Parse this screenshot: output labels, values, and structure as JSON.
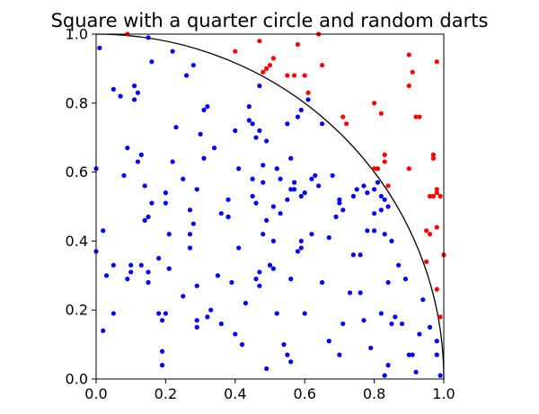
{
  "chart_data": {
    "type": "scatter",
    "title": "Square with a quarter circle and random darts",
    "xlabel": "",
    "ylabel": "",
    "xlim": [
      0.0,
      1.0
    ],
    "ylim": [
      0.0,
      1.0
    ],
    "x_ticks": [
      "0.0",
      "0.2",
      "0.4",
      "0.6",
      "0.8",
      "1.0"
    ],
    "y_ticks": [
      "0.0",
      "0.2",
      "0.4",
      "0.6",
      "0.8",
      "1.0"
    ],
    "grid": false,
    "legend": "none",
    "quarter_circle": {
      "center": [
        0,
        0
      ],
      "radius": 1.0,
      "color": "#000000"
    },
    "series": [
      {
        "color": "#0000ff",
        "points": [
          [
            0.01,
            0.96
          ],
          [
            0.0,
            0.61
          ],
          [
            0.0,
            0.37
          ],
          [
            0.02,
            0.43
          ],
          [
            0.02,
            0.14
          ],
          [
            0.03,
            0.3
          ],
          [
            0.05,
            0.33
          ],
          [
            0.05,
            0.19
          ],
          [
            0.05,
            0.84
          ],
          [
            0.07,
            0.82
          ],
          [
            0.08,
            0.59
          ],
          [
            0.09,
            0.67
          ],
          [
            0.1,
            0.33
          ],
          [
            0.09,
            0.29
          ],
          [
            0.1,
            0.31
          ],
          [
            0.11,
            0.85
          ],
          [
            0.12,
            0.83
          ],
          [
            0.11,
            0.81
          ],
          [
            0.12,
            0.63
          ],
          [
            0.13,
            0.65
          ],
          [
            0.14,
            0.56
          ],
          [
            0.14,
            0.46
          ],
          [
            0.15,
            0.47
          ],
          [
            0.16,
            0.51
          ],
          [
            0.16,
            0.92
          ],
          [
            0.15,
            0.99
          ],
          [
            0.15,
            0.31
          ],
          [
            0.15,
            0.28
          ],
          [
            0.18,
            0.19
          ],
          [
            0.19,
            0.04
          ],
          [
            0.19,
            0.08
          ],
          [
            0.19,
            0.17
          ],
          [
            0.2,
            0.19
          ],
          [
            0.2,
            0.51
          ],
          [
            0.2,
            0.54
          ],
          [
            0.21,
            0.42
          ],
          [
            0.21,
            0.32
          ],
          [
            0.22,
            0.95
          ],
          [
            0.23,
            0.73
          ],
          [
            0.25,
            0.24
          ],
          [
            0.26,
            0.88
          ],
          [
            0.27,
            0.49
          ],
          [
            0.27,
            0.42
          ],
          [
            0.27,
            0.38
          ],
          [
            0.28,
            0.45
          ],
          [
            0.28,
            0.91
          ],
          [
            0.29,
            0.27
          ],
          [
            0.29,
            0.55
          ],
          [
            0.29,
            0.17
          ],
          [
            0.3,
            0.71
          ],
          [
            0.31,
            0.64
          ],
          [
            0.31,
            0.78
          ],
          [
            0.32,
            0.79
          ],
          [
            0.32,
            0.18
          ],
          [
            0.33,
            0.2
          ],
          [
            0.34,
            0.67
          ],
          [
            0.35,
            0.3
          ],
          [
            0.36,
            0.48
          ],
          [
            0.36,
            0.16
          ],
          [
            0.38,
            0.52
          ],
          [
            0.38,
            0.47
          ],
          [
            0.39,
            0.28
          ],
          [
            0.4,
            0.72
          ],
          [
            0.4,
            0.13
          ],
          [
            0.41,
            0.61
          ],
          [
            0.42,
            0.1
          ],
          [
            0.43,
            0.22
          ],
          [
            0.44,
            0.79
          ],
          [
            0.44,
            0.75
          ],
          [
            0.45,
            0.58
          ],
          [
            0.45,
            0.53
          ],
          [
            0.45,
            0.74
          ],
          [
            0.46,
            0.7
          ],
          [
            0.46,
            0.51
          ],
          [
            0.46,
            0.29
          ],
          [
            0.47,
            0.31
          ],
          [
            0.47,
            0.27
          ],
          [
            0.47,
            0.72
          ],
          [
            0.47,
            0.85
          ],
          [
            0.48,
            0.62
          ],
          [
            0.48,
            0.57
          ],
          [
            0.49,
            0.46
          ],
          [
            0.48,
            0.42
          ],
          [
            0.49,
            0.03
          ],
          [
            0.49,
            0.69
          ],
          [
            0.5,
            0.33
          ],
          [
            0.51,
            0.5
          ],
          [
            0.51,
            0.32
          ],
          [
            0.51,
            0.4
          ],
          [
            0.52,
            0.19
          ],
          [
            0.53,
            0.58
          ],
          [
            0.53,
            0.48
          ],
          [
            0.54,
            0.1
          ],
          [
            0.55,
            0.74
          ],
          [
            0.55,
            0.52
          ],
          [
            0.55,
            0.07
          ],
          [
            0.56,
            0.05
          ],
          [
            0.56,
            0.29
          ],
          [
            0.56,
            0.64
          ],
          [
            0.56,
            0.55
          ],
          [
            0.57,
            0.57
          ],
          [
            0.57,
            0.55
          ],
          [
            0.58,
            0.37
          ],
          [
            0.58,
            0.76
          ],
          [
            0.59,
            0.53
          ],
          [
            0.59,
            0.78
          ],
          [
            0.59,
            0.38
          ],
          [
            0.59,
            0.4
          ],
          [
            0.6,
            0.19
          ],
          [
            0.6,
            0.54
          ],
          [
            0.61,
            0.81
          ],
          [
            0.62,
            0.58
          ],
          [
            0.63,
            0.59
          ],
          [
            0.64,
            0.56
          ],
          [
            0.65,
            0.74
          ],
          [
            0.67,
            0.11
          ],
          [
            0.67,
            0.41
          ],
          [
            0.68,
            0.59
          ],
          [
            0.69,
            0.47
          ],
          [
            0.7,
            0.51
          ],
          [
            0.7,
            0.52
          ],
          [
            0.7,
            0.07
          ],
          [
            0.71,
            0.16
          ],
          [
            0.73,
            0.25
          ],
          [
            0.74,
            0.53
          ],
          [
            0.75,
            0.55
          ],
          [
            0.76,
            0.36
          ],
          [
            0.77,
            0.17
          ],
          [
            0.77,
            0.56
          ],
          [
            0.78,
            0.43
          ],
          [
            0.78,
            0.54
          ],
          [
            0.79,
            0.09
          ],
          [
            0.8,
            0.43
          ],
          [
            0.8,
            0.48
          ],
          [
            0.8,
            0.55
          ],
          [
            0.81,
            0.57
          ],
          [
            0.82,
            0.19
          ],
          [
            0.82,
            0.53
          ],
          [
            0.82,
            0.49
          ],
          [
            0.83,
            0.01
          ],
          [
            0.83,
            0.52
          ],
          [
            0.84,
            0.28
          ],
          [
            0.84,
            0.04
          ],
          [
            0.84,
            0.5
          ],
          [
            0.85,
            0.16
          ],
          [
            0.85,
            0.4
          ],
          [
            0.86,
            0.18
          ],
          [
            0.87,
            0.33
          ],
          [
            0.88,
            0.16
          ],
          [
            0.89,
            0.29
          ],
          [
            0.9,
            0.07
          ],
          [
            0.91,
            0.07
          ],
          [
            0.92,
            0.02
          ],
          [
            0.93,
            0.13
          ],
          [
            0.94,
            0.23
          ],
          [
            0.96,
            0.15
          ],
          [
            0.98,
            0.07
          ],
          [
            0.98,
            0.11
          ],
          [
            0.99,
            0.01
          ],
          [
            0.38,
            0.47
          ],
          [
            0.52,
            0.61
          ],
          [
            0.74,
            0.36
          ],
          [
            0.22,
            0.63
          ],
          [
            0.25,
            0.58
          ],
          [
            0.18,
            0.35
          ],
          [
            0.13,
            0.33
          ],
          [
            0.29,
            0.15
          ],
          [
            0.41,
            0.38
          ],
          [
            0.62,
            0.42
          ],
          [
            0.65,
            0.28
          ],
          [
            0.83,
            0.42
          ],
          [
            0.76,
            0.25
          ],
          [
            0.71,
            0.49
          ]
        ]
      },
      {
        "color": "#ff0000",
        "points": [
          [
            0.09,
            1.0
          ],
          [
            0.4,
            0.95
          ],
          [
            0.47,
            0.98
          ],
          [
            0.48,
            0.89
          ],
          [
            0.49,
            0.9
          ],
          [
            0.5,
            0.91
          ],
          [
            0.51,
            0.93
          ],
          [
            0.55,
            0.88
          ],
          [
            0.57,
            0.88
          ],
          [
            0.58,
            0.97
          ],
          [
            0.6,
            0.88
          ],
          [
            0.61,
            0.83
          ],
          [
            0.64,
            1.0
          ],
          [
            0.65,
            0.91
          ],
          [
            0.71,
            0.76
          ],
          [
            0.72,
            0.74
          ],
          [
            0.8,
            0.8
          ],
          [
            0.8,
            0.61
          ],
          [
            0.81,
            0.61
          ],
          [
            0.82,
            0.77
          ],
          [
            0.83,
            0.65
          ],
          [
            0.83,
            0.63
          ],
          [
            0.84,
            0.56
          ],
          [
            0.9,
            0.94
          ],
          [
            0.9,
            0.85
          ],
          [
            0.91,
            0.89
          ],
          [
            0.92,
            0.76
          ],
          [
            0.9,
            0.61
          ],
          [
            0.93,
            0.76
          ],
          [
            0.95,
            0.43
          ],
          [
            0.95,
            0.34
          ],
          [
            0.96,
            0.42
          ],
          [
            0.97,
            0.53
          ],
          [
            0.97,
            0.64
          ],
          [
            0.97,
            0.65
          ],
          [
            0.98,
            0.92
          ],
          [
            0.98,
            0.55
          ],
          [
            0.99,
            0.53
          ],
          [
            0.98,
            0.44
          ],
          [
            0.98,
            0.26
          ],
          [
            0.99,
            0.18
          ],
          [
            1.0,
            0.36
          ],
          [
            0.96,
            0.53
          ],
          [
            0.98,
            0.54
          ]
        ]
      }
    ]
  }
}
